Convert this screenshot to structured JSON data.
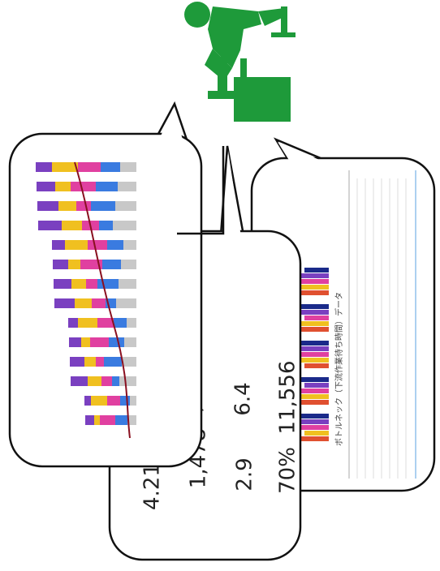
{
  "metrics": [
    "4.21",
    "1,478",
    "1,478",
    "2.9",
    "6.4",
    "70%",
    "11,556"
  ],
  "table_title": "ボトルネック（下流作業待ち時間）データ"
}
